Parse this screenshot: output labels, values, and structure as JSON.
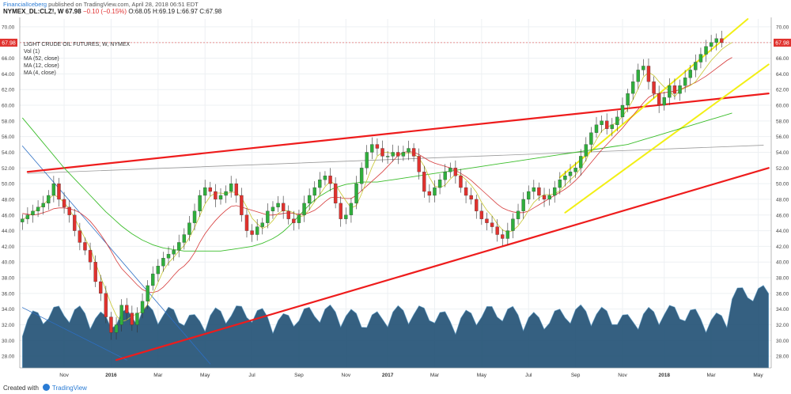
{
  "header": {
    "user": "FinancialIceberg",
    "published": "published on TradingView.com, April 28, 2018 06:51 EDT",
    "symbol": "NYMEX_DL:CLZ!, W",
    "price": "67.98",
    "change": "−0.10 (−0.15%)",
    "open": "O:68.05",
    "high": "H:69.19",
    "low": "L:66.97",
    "close": "C:67.98"
  },
  "legend": {
    "title": "LIGHT CRUDE OIL FUTURES, W, NYMEX",
    "items": [
      "Vol (1)",
      "MA (52, close)",
      "MA (12, close)",
      "MA (4, close)"
    ]
  },
  "footer": {
    "created": "Created with",
    "brand": "TradingView"
  },
  "price_tag": "67.98",
  "colors": {
    "up": "#2fae3c",
    "down": "#e0322e",
    "ma52": "#3bbd2b",
    "ma12": "#d63b3b",
    "ma4": "#c8c832",
    "channel_red": "#ee1c1c",
    "channel_yellow": "#f2ef15",
    "volume": "#1f4f73",
    "trend_blue": "#2d6fc4",
    "long_trend": "#9a9a9a",
    "background": "#ffffff"
  },
  "chart_data": {
    "type": "candlestick",
    "title": "LIGHT CRUDE OIL FUTURES, W, NYMEX",
    "ylim": [
      26.5,
      71
    ],
    "y_ticks": [
      "28.00",
      "30.00",
      "32.00",
      "34.00",
      "36.00",
      "38.00",
      "40.00",
      "42.00",
      "44.00",
      "46.00",
      "48.00",
      "50.00",
      "52.00",
      "54.00",
      "56.00",
      "58.00",
      "60.00",
      "62.00",
      "64.00",
      "66.00",
      "68.00",
      "70.00"
    ],
    "x_ticks": [
      {
        "label": "Nov",
        "week": 8
      },
      {
        "label": "2016",
        "week": 17
      },
      {
        "label": "Mar",
        "week": 26
      },
      {
        "label": "May",
        "week": 35
      },
      {
        "label": "Jul",
        "week": 44
      },
      {
        "label": "Sep",
        "week": 53
      },
      {
        "label": "Nov",
        "week": 62
      },
      {
        "label": "2017",
        "week": 70
      },
      {
        "label": "Mar",
        "week": 79
      },
      {
        "label": "May",
        "week": 88
      },
      {
        "label": "Jul",
        "week": 97
      },
      {
        "label": "Sep",
        "week": 106
      },
      {
        "label": "Nov",
        "week": 115
      },
      {
        "label": "2018",
        "week": 123
      },
      {
        "label": "Mar",
        "week": 132
      },
      {
        "label": "May",
        "week": 141
      }
    ],
    "weeks_total": 144,
    "closes": [
      45.5,
      46.0,
      46.5,
      47.0,
      47.5,
      48.5,
      50.0,
      48.0,
      47.0,
      46.0,
      44.0,
      42.5,
      41.5,
      40.0,
      37.5,
      36.0,
      33.0,
      31.0,
      32.0,
      34.5,
      33.5,
      32.0,
      33.5,
      35.0,
      37.0,
      38.5,
      39.5,
      40.5,
      41.0,
      41.5,
      42.5,
      43.5,
      45.0,
      46.5,
      48.5,
      49.5,
      49.0,
      48.0,
      48.5,
      49.0,
      50.0,
      48.5,
      46.0,
      44.0,
      43.5,
      44.5,
      45.0,
      46.5,
      47.0,
      47.5,
      46.5,
      45.5,
      45.0,
      46.0,
      47.5,
      48.5,
      49.5,
      50.5,
      51.0,
      50.0,
      47.5,
      45.5,
      46.0,
      47.5,
      50.0,
      52.0,
      54.0,
      55.0,
      54.5,
      53.5,
      53.5,
      54.0,
      53.5,
      54.0,
      54.5,
      53.5,
      51.5,
      49.0,
      48.5,
      49.5,
      50.5,
      51.5,
      52.0,
      51.0,
      49.5,
      48.5,
      48.0,
      46.5,
      45.5,
      45.0,
      44.5,
      43.5,
      43.0,
      44.0,
      45.5,
      46.5,
      48.0,
      49.0,
      49.5,
      48.5,
      48.0,
      48.5,
      49.5,
      50.5,
      51.0,
      51.5,
      52.0,
      53.5,
      55.0,
      56.5,
      57.5,
      58.0,
      57.0,
      57.5,
      58.5,
      60.0,
      61.5,
      63.0,
      64.5,
      65.0,
      63.0,
      61.5,
      60.0,
      61.0,
      62.5,
      61.5,
      62.5,
      63.5,
      64.5,
      65.5,
      66.5,
      67.5,
      68.0,
      68.5,
      67.98
    ],
    "ma4": [
      45.4,
      45.8,
      46.3,
      46.8,
      47.3,
      48.0,
      48.6,
      48.2,
      47.6,
      46.7,
      45.6,
      44.3,
      43.0,
      41.8,
      39.9,
      38.1,
      36.4,
      34.6,
      33.2,
      32.4,
      32.6,
      33.1,
      33.4,
      33.7,
      34.6,
      35.9,
      37.4,
      38.9,
      39.9,
      40.6,
      41.4,
      42.1,
      43.1,
      44.4,
      45.9,
      47.4,
      48.4,
      48.8,
      48.8,
      48.7,
      48.9,
      48.9,
      48.2,
      47.0,
      45.6,
      44.9,
      44.3,
      44.6,
      45.3,
      46.2,
      46.6,
      46.5,
      46.3,
      45.8,
      45.9,
      46.7,
      47.7,
      48.6,
      49.6,
      50.3,
      49.9,
      48.8,
      47.8,
      46.9,
      47.2,
      48.7,
      50.4,
      52.1,
      53.5,
      54.0,
      54.0,
      53.8,
      53.7,
      53.8,
      53.9,
      53.8,
      53.3,
      52.2,
      50.8,
      49.7,
      49.5,
      49.8,
      50.6,
      51.2,
      51.1,
      50.5,
      49.8,
      48.9,
      47.6,
      46.6,
      45.9,
      44.9,
      44.1,
      43.8,
      44.0,
      44.6,
      45.5,
      46.6,
      47.6,
      48.2,
      48.6,
      48.6,
      48.7,
      49.1,
      49.8,
      50.5,
      51.1,
      52.0,
      53.0,
      54.4,
      55.6,
      56.7,
      57.2,
      57.5,
      57.8,
      58.6,
      59.5,
      60.7,
      62.1,
      63.6,
      64.2,
      63.8,
      63.0,
      62.3,
      61.8,
      61.1,
      61.9,
      62.2,
      62.5,
      63.0,
      63.9,
      64.8,
      65.7,
      66.4,
      67.1,
      67.6,
      68.0
    ],
    "ma12": [
      46.2,
      46.1,
      46.0,
      46.1,
      46.3,
      46.5,
      46.8,
      46.9,
      46.9,
      46.8,
      46.6,
      46.3,
      45.8,
      45.2,
      44.4,
      43.5,
      42.5,
      41.4,
      40.2,
      39.2,
      38.5,
      37.8,
      37.1,
      36.5,
      36.2,
      36.1,
      36.3,
      36.8,
      37.5,
      38.3,
      39.0,
      39.5,
      40.2,
      41.2,
      42.5,
      43.6,
      44.5,
      45.3,
      46.0,
      46.6,
      47.1,
      47.2,
      47.0,
      46.8,
      46.6,
      46.4,
      46.2,
      46.0,
      46.0,
      46.1,
      46.2,
      46.3,
      46.2,
      46.1,
      46.1,
      46.3,
      46.6,
      47.1,
      47.7,
      48.2,
      48.3,
      48.2,
      48.1,
      48.1,
      48.5,
      49.1,
      49.7,
      50.3,
      50.9,
      51.5,
      52.2,
      52.9,
      53.6,
      54.0,
      54.1,
      54.0,
      53.7,
      53.3,
      52.9,
      52.6,
      52.4,
      52.2,
      52.0,
      51.7,
      51.3,
      50.9,
      50.4,
      49.8,
      49.2,
      48.6,
      48.0,
      47.4,
      46.9,
      46.6,
      46.4,
      46.3,
      46.3,
      46.5,
      46.9,
      47.3,
      47.7,
      48.1,
      48.5,
      48.9,
      49.3,
      49.8,
      50.4,
      51.1,
      51.9,
      52.7,
      53.5,
      54.3,
      55.0,
      55.7,
      56.4,
      57.1,
      57.9,
      58.7,
      59.5,
      60.3,
      61.0,
      61.4,
      61.5,
      61.6,
      61.7,
      61.8,
      62.0,
      62.3,
      62.6,
      62.9,
      63.3,
      63.7,
      64.2,
      64.7,
      65.2,
      65.7,
      66.1
    ],
    "ma52": [
      58.4,
      57.6,
      56.8,
      56.0,
      55.2,
      54.4,
      53.6,
      52.8,
      52.0,
      51.3,
      50.6,
      49.9,
      49.2,
      48.5,
      47.8,
      47.1,
      46.4,
      45.8,
      45.2,
      44.6,
      44.1,
      43.6,
      43.2,
      42.8,
      42.5,
      42.2,
      42.0,
      41.8,
      41.7,
      41.6,
      41.5,
      41.4,
      41.4,
      41.4,
      41.4,
      41.4,
      41.4,
      41.4,
      41.4,
      41.5,
      41.6,
      41.7,
      41.8,
      41.9,
      42.0,
      42.2,
      42.4,
      42.7,
      43.0,
      43.4,
      43.9,
      44.5,
      45.2,
      45.9,
      46.6,
      47.3,
      47.9,
      48.4,
      48.8,
      49.2,
      49.5,
      49.7,
      49.9,
      50.0,
      50.1,
      50.2,
      50.2,
      50.2,
      50.2,
      50.3,
      50.4,
      50.5,
      50.6,
      50.7,
      50.8,
      50.9,
      51.0,
      51.1,
      51.2,
      51.3,
      51.4,
      51.5,
      51.6,
      51.7,
      51.8,
      51.9,
      52.0,
      52.1,
      52.2,
      52.3,
      52.4,
      52.5,
      52.6,
      52.7,
      52.8,
      52.9,
      53.0,
      53.1,
      53.2,
      53.3,
      53.4,
      53.5,
      53.6,
      53.7,
      53.8,
      53.9,
      54.0,
      54.1,
      54.2,
      54.3,
      54.4,
      54.5,
      54.6,
      54.7,
      54.8,
      54.9,
      55.0,
      55.2,
      55.4,
      55.6,
      55.8,
      56.0,
      56.2,
      56.4,
      56.6,
      56.8,
      57.0,
      57.2,
      57.4,
      57.6,
      57.8,
      58.0,
      58.2,
      58.4,
      58.6,
      58.8,
      59.0
    ],
    "annotations": {
      "red_upper": [
        [
          1,
          51.5
        ],
        [
          143,
          61.5
        ]
      ],
      "red_lower": [
        [
          18,
          27.5
        ],
        [
          143,
          52.0
        ]
      ],
      "yellow_upper": [
        [
          103,
          50.8
        ],
        [
          139,
          71.0
        ]
      ],
      "yellow_lower": [
        [
          104,
          46.3
        ],
        [
          143,
          65.2
        ]
      ],
      "grey_trend": [
        [
          1,
          51.3
        ],
        [
          142,
          54.9
        ]
      ],
      "blue_line_1": [
        [
          0,
          54.8
        ],
        [
          36,
          27.0
        ]
      ],
      "blue_line_2": [
        [
          0,
          34.2
        ],
        [
          20,
          27.5
        ]
      ]
    }
  }
}
